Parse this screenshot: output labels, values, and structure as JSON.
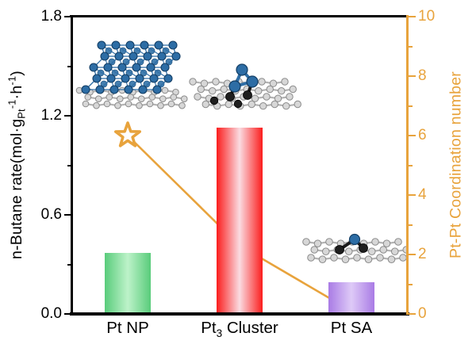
{
  "labels": {
    "left": {
      "p1": "n-Butane rate(mol·g",
      "sub1": "Pt",
      "sup1": "-1",
      "p2": "·h",
      "sup2": "-1",
      "p3": ")"
    },
    "right": "Pt-Pt Coordination number"
  },
  "chart_data": {
    "type": "bar",
    "title": "",
    "categories": [
      "Pt NP",
      "Pt3 Cluster",
      "Pt SA"
    ],
    "category_parts": [
      {
        "pre": "Pt NP",
        "sub": "",
        "post": ""
      },
      {
        "pre": "Pt",
        "sub": "3",
        "post": " Cluster"
      },
      {
        "pre": "Pt SA",
        "sub": "",
        "post": ""
      }
    ],
    "series": [
      {
        "name": "n-Butane rate",
        "type": "bar",
        "axis": "left",
        "values": [
          0.37,
          1.13,
          0.19
        ],
        "bar_colors": [
          {
            "edge": "#59cc7b",
            "center": "#bdf2c9"
          },
          {
            "edge": "#fb1d1d",
            "center": "#fadbe1"
          },
          {
            "edge": "#a97be5",
            "center": "#decaf7"
          }
        ]
      },
      {
        "name": "Pt-Pt Coordination number",
        "type": "line",
        "axis": "right",
        "marker": "open-star",
        "marker_fill": "#ffffff",
        "color": "#e8a33c",
        "values": [
          6.0,
          2.3,
          0.1
        ]
      }
    ],
    "left_axis": {
      "label": "n-Butane rate(mol·g_Pt^-1·h^-1)",
      "range": [
        0,
        1.8
      ],
      "major_ticks": [
        0,
        0.6,
        1.2,
        1.8
      ],
      "tick_labels": [
        "0.0",
        "0.6",
        "1.2",
        "1.8"
      ],
      "minor_ticks": [
        0.3,
        0.9,
        1.5
      ],
      "color": "#000000"
    },
    "right_axis": {
      "label": "Pt-Pt Coordination number",
      "range": [
        0,
        10
      ],
      "major_ticks": [
        0,
        2,
        4,
        6,
        8,
        10
      ],
      "tick_labels": [
        "0",
        "2",
        "4",
        "6",
        "8",
        "10"
      ],
      "minor_ticks": [
        1,
        3,
        5,
        7,
        9
      ],
      "color": "#e8a33c"
    },
    "x_axis": {
      "tick_marks": false
    },
    "grid": false,
    "legend": "none",
    "insets": [
      "pt-nanoparticle-structure",
      "pt3-cluster-structure",
      "pt-single-atom-structure"
    ]
  }
}
